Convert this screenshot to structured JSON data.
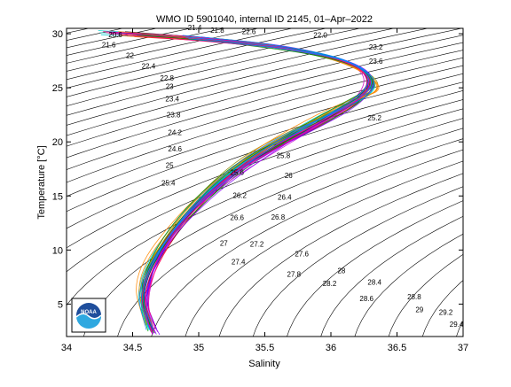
{
  "chart_data": {
    "type": "scatter",
    "title": "WMO ID 5901040, internal ID 2145, 01–Apr–2022",
    "xlabel": "Salinity",
    "ylabel": "Temperature [°C]",
    "xlim": [
      34,
      37
    ],
    "ylim": [
      2,
      30.5
    ],
    "x_ticks": [
      34,
      34.5,
      35,
      35.5,
      36,
      36.5,
      37
    ],
    "x_tick_labels": [
      "34",
      "34.5",
      "35",
      "35.5",
      "36",
      "36.5",
      "37"
    ],
    "y_ticks": [
      5,
      10,
      15,
      20,
      25,
      30
    ],
    "y_tick_labels": [
      "5",
      "10",
      "15",
      "20",
      "25",
      "30"
    ],
    "grid": false,
    "legend": false,
    "background": "isopycnal contours (sigma-theta)",
    "contour_labels": [
      {
        "text": "20.6",
        "s": 34.37,
        "t": 29.87
      },
      {
        "text": "21.8",
        "s": 35.14,
        "t": 30.26
      },
      {
        "text": "22.0",
        "s": 35.92,
        "t": 29.82
      },
      {
        "text": "22.6",
        "s": 35.38,
        "t": 30.16
      },
      {
        "text": "21.4",
        "s": 34.97,
        "t": 30.49
      },
      {
        "text": "21.6",
        "s": 34.32,
        "t": 28.9
      },
      {
        "text": "22",
        "s": 34.48,
        "t": 27.92
      },
      {
        "text": "22.4",
        "s": 34.62,
        "t": 26.94
      },
      {
        "text": "22.8",
        "s": 34.76,
        "t": 25.86
      },
      {
        "text": "23",
        "s": 34.78,
        "t": 25.08
      },
      {
        "text": "23.4",
        "s": 34.8,
        "t": 23.93
      },
      {
        "text": "23.8",
        "s": 34.81,
        "t": 22.45
      },
      {
        "text": "24.2",
        "s": 34.82,
        "t": 20.82
      },
      {
        "text": "24.6",
        "s": 34.82,
        "t": 19.3
      },
      {
        "text": "25",
        "s": 34.78,
        "t": 17.79
      },
      {
        "text": "25.4",
        "s": 34.77,
        "t": 16.15
      },
      {
        "text": "23.2",
        "s": 36.34,
        "t": 28.69
      },
      {
        "text": "23.6",
        "s": 36.34,
        "t": 27.38
      },
      {
        "text": "25.2",
        "s": 36.33,
        "t": 22.17
      },
      {
        "text": "25.8",
        "s": 35.64,
        "t": 18.66
      },
      {
        "text": "25.6",
        "s": 35.29,
        "t": 17.12
      },
      {
        "text": "26",
        "s": 35.68,
        "t": 16.83
      },
      {
        "text": "26.2",
        "s": 35.31,
        "t": 15.0
      },
      {
        "text": "26.4",
        "s": 35.65,
        "t": 14.83
      },
      {
        "text": "26.6",
        "s": 35.29,
        "t": 12.95
      },
      {
        "text": "26.8",
        "s": 35.6,
        "t": 13.0
      },
      {
        "text": "27",
        "s": 35.19,
        "t": 10.56
      },
      {
        "text": "27.2",
        "s": 35.44,
        "t": 10.48
      },
      {
        "text": "27.4",
        "s": 35.3,
        "t": 8.85
      },
      {
        "text": "27.6",
        "s": 35.78,
        "t": 9.6
      },
      {
        "text": "27.8",
        "s": 35.72,
        "t": 7.71
      },
      {
        "text": "28",
        "s": 36.08,
        "t": 8.04
      },
      {
        "text": "28.2",
        "s": 35.99,
        "t": 6.86
      },
      {
        "text": "28.4",
        "s": 36.33,
        "t": 6.98
      },
      {
        "text": "28.6",
        "s": 36.27,
        "t": 5.45
      },
      {
        "text": "28.8",
        "s": 36.63,
        "t": 5.6
      },
      {
        "text": "29",
        "s": 36.67,
        "t": 4.42
      },
      {
        "text": "29.2",
        "s": 36.87,
        "t": 4.17
      },
      {
        "text": "29.4",
        "s": 36.95,
        "t": 3.06
      }
    ],
    "profiles": [
      {
        "color": "#ff0000",
        "points": [
          [
            34.65,
            2.5
          ],
          [
            34.56,
            5.8
          ],
          [
            34.78,
            11.5
          ],
          [
            35.18,
            16.5
          ],
          [
            35.55,
            19.5
          ],
          [
            35.95,
            22.0
          ],
          [
            36.3,
            24.5
          ],
          [
            36.28,
            26.6
          ],
          [
            35.9,
            28.2
          ],
          [
            35.2,
            29.4
          ],
          [
            34.5,
            29.9
          ]
        ]
      },
      {
        "color": "#0000ff",
        "points": [
          [
            34.66,
            2.6
          ],
          [
            34.55,
            6.1
          ],
          [
            34.8,
            12.0
          ],
          [
            35.22,
            17.0
          ],
          [
            35.62,
            20.0
          ],
          [
            36.0,
            22.5
          ],
          [
            36.35,
            25.0
          ],
          [
            36.22,
            27.2
          ],
          [
            35.75,
            28.6
          ],
          [
            35.0,
            29.6
          ],
          [
            34.35,
            30.1
          ]
        ]
      },
      {
        "color": "#00aa00",
        "points": [
          [
            34.64,
            2.4
          ],
          [
            34.54,
            5.5
          ],
          [
            34.74,
            11.0
          ],
          [
            35.14,
            16.0
          ],
          [
            35.5,
            19.0
          ],
          [
            35.9,
            21.6
          ],
          [
            36.27,
            24.3
          ],
          [
            36.32,
            26.3
          ],
          [
            36.0,
            27.9
          ],
          [
            35.4,
            29.2
          ],
          [
            34.7,
            29.8
          ]
        ]
      },
      {
        "color": "#00cccc",
        "points": [
          [
            34.62,
            2.8
          ],
          [
            34.52,
            6.5
          ],
          [
            34.82,
            12.5
          ],
          [
            35.25,
            17.5
          ],
          [
            35.65,
            20.5
          ],
          [
            36.05,
            23.0
          ],
          [
            36.4,
            25.2
          ],
          [
            36.15,
            27.6
          ],
          [
            35.55,
            28.9
          ],
          [
            34.8,
            29.8
          ],
          [
            34.25,
            30.1
          ]
        ]
      },
      {
        "color": "#cc00cc",
        "points": [
          [
            34.67,
            2.3
          ],
          [
            34.57,
            5.2
          ],
          [
            34.72,
            10.5
          ],
          [
            35.1,
            15.5
          ],
          [
            35.46,
            18.6
          ],
          [
            35.85,
            21.2
          ],
          [
            36.22,
            23.9
          ],
          [
            36.3,
            26.0
          ],
          [
            36.1,
            27.6
          ],
          [
            35.6,
            28.9
          ],
          [
            34.9,
            29.7
          ]
        ]
      },
      {
        "color": "#888800",
        "points": [
          [
            34.63,
            3.0
          ],
          [
            34.53,
            7.0
          ],
          [
            34.85,
            13.0
          ],
          [
            35.28,
            18.0
          ],
          [
            35.7,
            20.9
          ],
          [
            36.1,
            23.4
          ],
          [
            36.42,
            25.4
          ],
          [
            36.05,
            27.9
          ],
          [
            35.3,
            29.3
          ],
          [
            34.6,
            29.9
          ]
        ]
      },
      {
        "color": "#333333",
        "points": [
          [
            34.65,
            2.7
          ],
          [
            34.55,
            6.0
          ],
          [
            34.77,
            11.3
          ],
          [
            35.17,
            16.3
          ],
          [
            35.53,
            19.3
          ],
          [
            35.93,
            21.8
          ],
          [
            36.29,
            24.4
          ],
          [
            36.26,
            26.9
          ],
          [
            35.85,
            28.4
          ],
          [
            35.1,
            29.5
          ],
          [
            34.45,
            30.0
          ]
        ]
      },
      {
        "color": "#ff8800",
        "points": [
          [
            34.61,
            3.2
          ],
          [
            34.51,
            7.5
          ],
          [
            34.88,
            13.6
          ],
          [
            35.32,
            18.4
          ],
          [
            35.74,
            21.2
          ],
          [
            36.12,
            23.7
          ],
          [
            36.45,
            25.0
          ],
          [
            36.0,
            28.1
          ],
          [
            35.2,
            29.4
          ],
          [
            34.4,
            30.0
          ]
        ]
      },
      {
        "color": "#8800ff",
        "points": [
          [
            34.68,
            2.2
          ],
          [
            34.58,
            4.8
          ],
          [
            34.7,
            10.0
          ],
          [
            35.06,
            15.0
          ],
          [
            35.42,
            18.2
          ],
          [
            35.82,
            20.9
          ],
          [
            36.2,
            23.6
          ],
          [
            36.34,
            25.8
          ],
          [
            36.18,
            27.3
          ],
          [
            35.7,
            28.7
          ],
          [
            35.0,
            29.6
          ]
        ]
      },
      {
        "color": "#008800",
        "points": [
          [
            34.64,
            2.9
          ],
          [
            34.54,
            6.8
          ],
          [
            34.83,
            12.7
          ],
          [
            35.26,
            17.7
          ],
          [
            35.67,
            20.6
          ],
          [
            36.07,
            23.1
          ],
          [
            36.38,
            25.3
          ],
          [
            36.12,
            27.7
          ],
          [
            35.45,
            29.0
          ],
          [
            34.55,
            29.9
          ]
        ]
      },
      {
        "color": "#ff0088",
        "points": [
          [
            34.66,
            2.5
          ],
          [
            34.56,
            5.9
          ],
          [
            34.79,
            11.7
          ],
          [
            35.2,
            16.7
          ],
          [
            35.58,
            19.7
          ],
          [
            35.97,
            22.2
          ],
          [
            36.32,
            24.7
          ],
          [
            36.24,
            27.0
          ],
          [
            35.8,
            28.5
          ],
          [
            35.05,
            29.5
          ],
          [
            34.3,
            30.1
          ]
        ]
      },
      {
        "color": "#0088ff",
        "points": [
          [
            34.63,
            2.6
          ],
          [
            34.53,
            6.3
          ],
          [
            34.81,
            12.2
          ],
          [
            35.23,
            17.2
          ],
          [
            35.6,
            20.2
          ],
          [
            36.02,
            22.7
          ],
          [
            36.36,
            25.1
          ],
          [
            36.2,
            27.4
          ],
          [
            35.65,
            28.8
          ],
          [
            34.9,
            29.7
          ]
        ]
      }
    ]
  }
}
